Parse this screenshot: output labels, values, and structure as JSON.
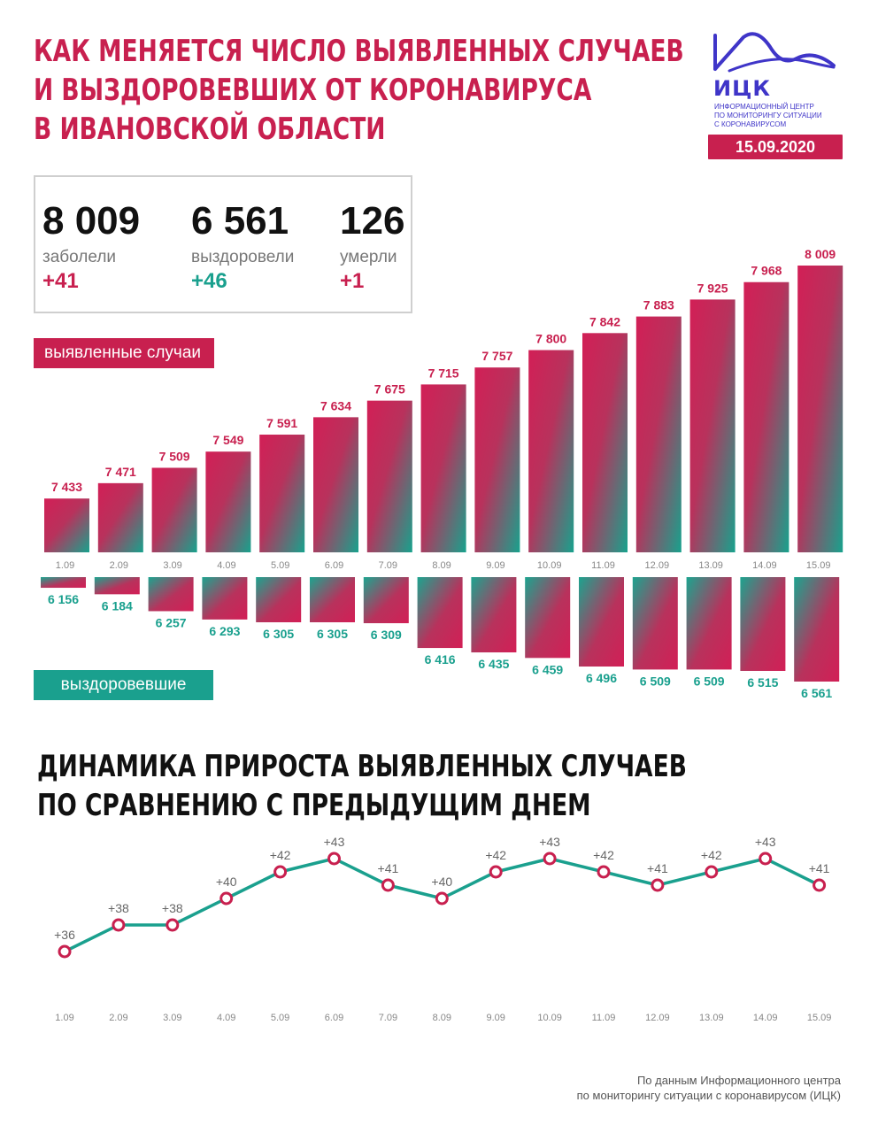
{
  "header": {
    "title_lines": [
      "КАК МЕНЯЕТСЯ ЧИСЛО ВЫЯВЛЕННЫХ СЛУЧАЕВ",
      "И ВЫЗДОРОВЕВШИХ ОТ КОРОНАВИРУСА",
      "В ИВАНОВСКОЙ ОБЛАСТИ"
    ],
    "logo_abbr": "ИЦК",
    "logo_sub_lines": [
      "ИНФОРМАЦИОННЫЙ ЦЕНТР",
      "ПО МОНИТОРИНГУ СИТУАЦИИ",
      "С КОРОНАВИРУСОМ"
    ],
    "date": "15.09.2020"
  },
  "stats": [
    {
      "value": "8 009",
      "label": "заболели",
      "delta": "+41",
      "delta_color": "#c8204f"
    },
    {
      "value": "6 561",
      "label": "выздоровели",
      "delta": "+46",
      "delta_color": "#1aa08e"
    },
    {
      "value": "126",
      "label": "умерли",
      "delta": "+1",
      "delta_color": "#c8204f"
    }
  ],
  "labels": {
    "cases": "выявленные случаи",
    "recovered": "выздоровевшие"
  },
  "section2": {
    "title_lines": [
      "ДИНАМИКА ПРИРОСТА ВЫЯВЛЕННЫХ СЛУЧАЕВ",
      "ПО СРАВНЕНИЮ С ПРЕДЫДУЩИМ ДНЕМ"
    ]
  },
  "footnote": [
    "По данным Информационного центра",
    "по мониторингу ситуации с коронавирусом (ИЦК)"
  ],
  "colors": {
    "accent_red": "#c8204f",
    "accent_green": "#1aa08e",
    "logo_blue": "#3f35c8"
  },
  "chart_data": [
    {
      "type": "bar",
      "categories": [
        "1.09",
        "2.09",
        "3.09",
        "4.09",
        "5.09",
        "6.09",
        "7.09",
        "8.09",
        "9.09",
        "10.09",
        "11.09",
        "12.09",
        "13.09",
        "14.09",
        "15.09"
      ],
      "series": [
        {
          "name": "выявленные случаи",
          "values": [
            7433,
            7471,
            7509,
            7549,
            7591,
            7634,
            7675,
            7715,
            7757,
            7800,
            7842,
            7883,
            7925,
            7968,
            8009
          ],
          "labels": [
            "7 433",
            "7 471",
            "7 509",
            "7 549",
            "7 591",
            "7 634",
            "7 675",
            "7 715",
            "7 757",
            "7 800",
            "7 842",
            "7 883",
            "7 925",
            "7 968",
            "8 009"
          ]
        },
        {
          "name": "выздоровевшие",
          "values": [
            6156,
            6184,
            6257,
            6293,
            6305,
            6305,
            6309,
            6416,
            6435,
            6459,
            6496,
            6509,
            6509,
            6515,
            6561
          ],
          "labels": [
            "6 156",
            "6 184",
            "6 257",
            "6 293",
            "6 305",
            "6 305",
            "6 309",
            "6 416",
            "6 435",
            "6 459",
            "6 496",
            "6 509",
            "6 509",
            "6 515",
            "6 561"
          ]
        }
      ]
    },
    {
      "type": "line",
      "categories": [
        "1.09",
        "2.09",
        "3.09",
        "4.09",
        "5.09",
        "6.09",
        "7.09",
        "8.09",
        "9.09",
        "10.09",
        "11.09",
        "12.09",
        "13.09",
        "14.09",
        "15.09"
      ],
      "values": [
        36,
        38,
        38,
        40,
        42,
        43,
        41,
        40,
        42,
        43,
        42,
        41,
        42,
        43,
        41
      ],
      "labels": [
        "+36",
        "+38",
        "+38",
        "+40",
        "+42",
        "+43",
        "+41",
        "+40",
        "+42",
        "+43",
        "+42",
        "+41",
        "+42",
        "+43",
        "+41"
      ]
    }
  ]
}
